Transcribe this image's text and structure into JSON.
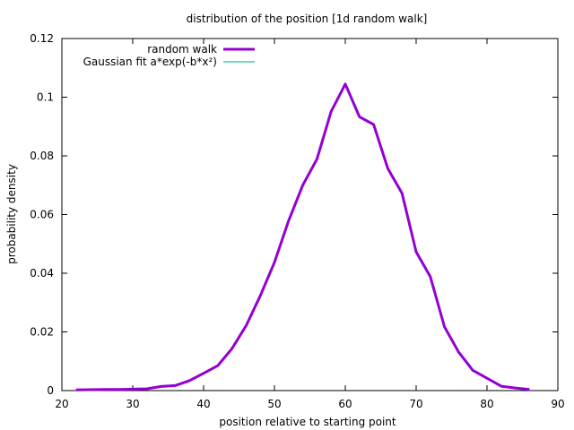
{
  "chart_data": {
    "type": "line",
    "title": "distribution of the position [1d random walk]",
    "xlabel": "position relative to starting point",
    "ylabel": "probability density",
    "xlim": [
      20,
      90
    ],
    "ylim": [
      0,
      0.12
    ],
    "xticks": [
      20,
      30,
      40,
      50,
      60,
      70,
      80,
      90
    ],
    "yticks": [
      0,
      0.02,
      0.04,
      0.06,
      0.08,
      0.1,
      0.12
    ],
    "xtick_labels": [
      "20",
      "30",
      "40",
      "50",
      "60",
      "70",
      "80",
      "90"
    ],
    "ytick_labels": [
      "0",
      "0.02",
      "0.04",
      "0.06",
      "0.08",
      "0.1",
      "0.12"
    ],
    "grid": false,
    "legend_position": "top-left",
    "series": [
      {
        "name": "random walk",
        "color": "#9400d3",
        "x": [
          22,
          24,
          26,
          28,
          30,
          32,
          34,
          36,
          38,
          40,
          42,
          44,
          46,
          48,
          50,
          52,
          54,
          56,
          58,
          60,
          62,
          64,
          66,
          68,
          70,
          72,
          74,
          76,
          78,
          80,
          82,
          84,
          86
        ],
        "y": [
          0.0002,
          0.0003,
          0.0004,
          0.0004,
          0.0005,
          0.0006,
          0.0014,
          0.0017,
          0.0034,
          0.0059,
          0.0085,
          0.0143,
          0.0221,
          0.0323,
          0.0437,
          0.0579,
          0.07,
          0.0789,
          0.0951,
          0.1045,
          0.0933,
          0.0907,
          0.0757,
          0.0673,
          0.0473,
          0.0388,
          0.0217,
          0.0131,
          0.0069,
          0.0042,
          0.0015,
          0.0009,
          0.0004
        ]
      },
      {
        "name": "Gaussian fit a*exp(-b*x²)",
        "color": "#40c8a8",
        "x": [],
        "y": []
      }
    ]
  }
}
